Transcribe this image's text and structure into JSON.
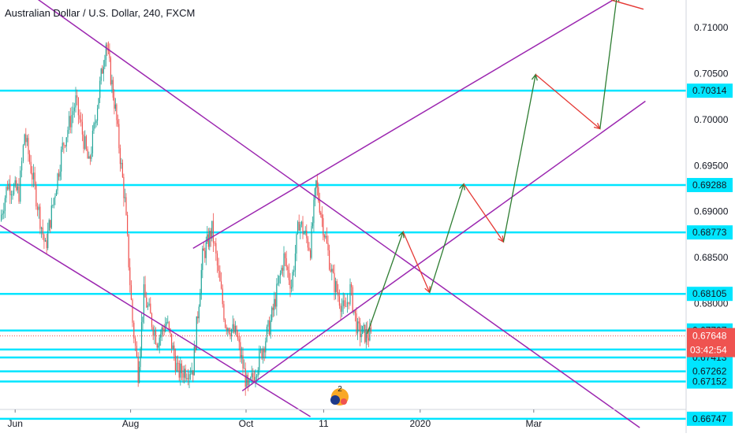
{
  "title": "Australian Dollar / U.S. Dollar, 240, FXCM",
  "colors": {
    "background": "#ffffff",
    "bull": "#26a69a",
    "bear": "#ef5350",
    "channel": "#9c27b0",
    "level": "#00e5ff",
    "arrow_up": "#2e7d32",
    "arrow_down": "#e53935",
    "price_badge": "#ef5350",
    "level_badge": "#00e5ff",
    "axis_text": "#131722"
  },
  "chart_data": {
    "type": "candlestick",
    "title": "Australian Dollar / U.S. Dollar, 240, FXCM",
    "symbol": "AUDUSD",
    "interval": "240",
    "source": "FXCM",
    "y_range": [
      0.666,
      0.713
    ],
    "x_range": [
      "2019-05-24",
      "2020-04-29"
    ],
    "y_ticks": [
      0.66747,
      0.67152,
      0.67262,
      0.67413,
      0.67648,
      0.67707,
      0.68,
      0.68105,
      0.685,
      0.68773,
      0.69,
      0.69288,
      0.695,
      0.7,
      0.70314,
      0.705,
      0.71
    ],
    "x_ticks": [
      {
        "label": "Jun",
        "date": "2019-06-01"
      },
      {
        "label": "Aug",
        "date": "2019-08-01"
      },
      {
        "label": "Oct",
        "date": "2019-10-01"
      },
      {
        "label": "11",
        "date": "2019-11-11"
      },
      {
        "label": "2020",
        "date": "2020-01-01"
      },
      {
        "label": "Mar",
        "date": "2020-03-01"
      }
    ],
    "price_path": [
      {
        "date": "2019-05-24",
        "price": 0.689
      },
      {
        "date": "2019-05-28",
        "price": 0.693
      },
      {
        "date": "2019-06-03",
        "price": 0.692
      },
      {
        "date": "2019-06-06",
        "price": 0.6985
      },
      {
        "date": "2019-06-10",
        "price": 0.694
      },
      {
        "date": "2019-06-17",
        "price": 0.686
      },
      {
        "date": "2019-06-26",
        "price": 0.697
      },
      {
        "date": "2019-07-03",
        "price": 0.702
      },
      {
        "date": "2019-07-10",
        "price": 0.695
      },
      {
        "date": "2019-07-19",
        "price": 0.7085
      },
      {
        "date": "2019-07-24",
        "price": 0.701
      },
      {
        "date": "2019-07-29",
        "price": 0.691
      },
      {
        "date": "2019-08-02",
        "price": 0.678
      },
      {
        "date": "2019-08-05",
        "price": 0.6725
      },
      {
        "date": "2019-08-08",
        "price": 0.681
      },
      {
        "date": "2019-08-15",
        "price": 0.676
      },
      {
        "date": "2019-08-20",
        "price": 0.678
      },
      {
        "date": "2019-08-26",
        "price": 0.6725
      },
      {
        "date": "2019-09-03",
        "price": 0.673
      },
      {
        "date": "2019-09-08",
        "price": 0.685
      },
      {
        "date": "2019-09-13",
        "price": 0.688
      },
      {
        "date": "2019-09-20",
        "price": 0.678
      },
      {
        "date": "2019-09-26",
        "price": 0.6765
      },
      {
        "date": "2019-10-02",
        "price": 0.6705
      },
      {
        "date": "2019-10-08",
        "price": 0.674
      },
      {
        "date": "2019-10-14",
        "price": 0.678
      },
      {
        "date": "2019-10-21",
        "price": 0.685
      },
      {
        "date": "2019-10-25",
        "price": 0.682
      },
      {
        "date": "2019-10-29",
        "price": 0.689
      },
      {
        "date": "2019-11-04",
        "price": 0.686
      },
      {
        "date": "2019-11-07",
        "price": 0.693
      },
      {
        "date": "2019-11-12",
        "price": 0.687
      },
      {
        "date": "2019-11-16",
        "price": 0.6825
      },
      {
        "date": "2019-11-22",
        "price": 0.679
      },
      {
        "date": "2019-11-25",
        "price": 0.6815
      },
      {
        "date": "2019-11-29",
        "price": 0.677
      },
      {
        "date": "2019-12-06",
        "price": 0.6764
      }
    ],
    "last_price": 0.67648,
    "countdown": "03:42:54",
    "horizontal_levels": [
      0.70314,
      0.69288,
      0.68773,
      0.68105,
      0.67707,
      0.67413,
      0.67262,
      0.67152,
      0.66747,
      0.675
    ],
    "level_labels": [
      0.70314,
      0.69288,
      0.68773,
      0.68105,
      0.67707,
      0.67413,
      0.67262,
      0.67152,
      0.66747
    ],
    "trendlines": [
      {
        "name": "upper-descending",
        "from": {
          "date": "2019-05-24",
          "price": 0.716
        },
        "to": {
          "date": "2020-04-26",
          "price": 0.6665
        }
      },
      {
        "name": "lower-descending",
        "from": {
          "date": "2019-05-24",
          "price": 0.6885
        },
        "to": {
          "date": "2019-11-04",
          "price": 0.6677
        }
      },
      {
        "name": "upper-ascending",
        "from": {
          "date": "2019-09-03",
          "price": 0.686
        },
        "to": {
          "date": "2020-04-16",
          "price": 0.7135
        }
      },
      {
        "name": "lower-ascending",
        "from": {
          "date": "2019-09-29",
          "price": 0.6705
        },
        "to": {
          "date": "2020-04-29",
          "price": 0.702
        }
      },
      {
        "name": "lower-ascending-extension",
        "from": {
          "date": "2020-04-11",
          "price": 0.713
        },
        "to": {
          "date": "2020-04-28",
          "price": 0.712
        }
      }
    ],
    "projection_path": [
      {
        "date": "2019-12-04",
        "price": 0.6767,
        "direction": "up"
      },
      {
        "date": "2019-12-23",
        "price": 0.6878,
        "direction": "down"
      },
      {
        "date": "2020-01-06",
        "price": 0.6812,
        "direction": "up"
      },
      {
        "date": "2020-01-24",
        "price": 0.693,
        "direction": "down"
      },
      {
        "date": "2020-02-14",
        "price": 0.6867,
        "direction": "up"
      },
      {
        "date": "2020-03-02",
        "price": 0.7049,
        "direction": "down"
      },
      {
        "date": "2020-04-05",
        "price": 0.699,
        "direction": "up"
      },
      {
        "date": "2020-04-14",
        "price": 0.7135,
        "direction": "up"
      }
    ],
    "grid": false,
    "legend": "none",
    "event_badge_count": "2"
  }
}
